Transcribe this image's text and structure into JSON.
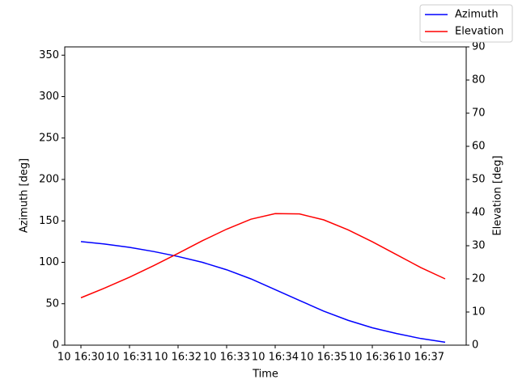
{
  "chart_data": {
    "type": "line",
    "x_label": "Time",
    "y_label": "Azimuth [deg]",
    "y2_label": "Elevation [deg]",
    "x": [
      "16:30:00",
      "16:30:30",
      "16:31:00",
      "16:31:30",
      "16:32:00",
      "16:32:30",
      "16:33:00",
      "16:33:30",
      "16:34:00",
      "16:34:30",
      "16:35:00",
      "16:35:30",
      "16:36:00",
      "16:36:30",
      "16:37:00",
      "16:37:30"
    ],
    "xlim": [
      "16:29:40",
      "16:37:56"
    ],
    "xticks": [
      {
        "value": "16:30",
        "label": "10 16:30"
      },
      {
        "value": "16:31",
        "label": "10 16:31"
      },
      {
        "value": "16:32",
        "label": "10 16:32"
      },
      {
        "value": "16:33",
        "label": "10 16:33"
      },
      {
        "value": "16:34",
        "label": "10 16:34"
      },
      {
        "value": "16:35",
        "label": "10 16:35"
      },
      {
        "value": "16:36",
        "label": "10 16:36"
      },
      {
        "value": "16:37",
        "label": "10 16:37"
      }
    ],
    "ylim": [
      0,
      360
    ],
    "yticks": [
      0,
      50,
      100,
      150,
      200,
      250,
      300,
      350
    ],
    "y2lim": [
      0,
      90
    ],
    "y2ticks": [
      0,
      10,
      20,
      30,
      40,
      50,
      60,
      70,
      80,
      90
    ],
    "legend": "upper right",
    "series": [
      {
        "name": "Azimuth",
        "color": "#0000ff",
        "values": [
          125,
          122,
          118,
          113,
          107,
          100,
          91,
          80,
          67,
          54,
          41,
          30,
          21,
          14,
          8,
          3.5
        ]
      },
      {
        "name": "Elevation",
        "color": "#ff0000",
        "axis": "y2",
        "values": [
          14.3,
          17.3,
          20.5,
          24,
          27.7,
          31.5,
          35,
          38,
          39.7,
          39.6,
          37.8,
          34.8,
          31.2,
          27.3,
          23.4,
          20
        ]
      }
    ]
  }
}
